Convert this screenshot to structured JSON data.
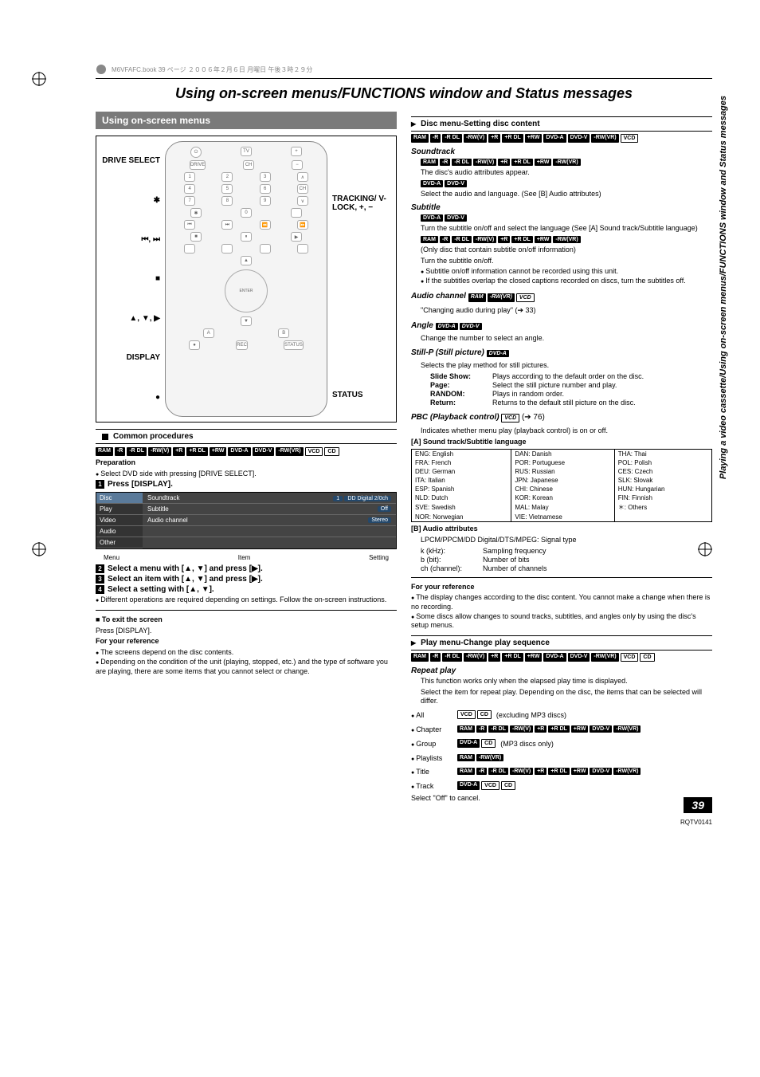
{
  "side_label": "Playing a video cassette/Using on-screen menus/FUNCTIONS window and Status messages",
  "header_meta": "M6VFAFC.book  39 ページ  ２００６年２月６日  月曜日  午後３時２９分",
  "main_title": "Using on-screen menus/FUNCTIONS window and Status messages",
  "left": {
    "section_title": "Using on-screen menus",
    "remote_left": [
      "DRIVE SELECT",
      "✱",
      "⏮, ⏭",
      "■",
      "▲, ▼, ▶",
      "DISPLAY",
      "●"
    ],
    "remote_right_1": "TRACKING/ V-LOCK, +, −",
    "remote_right_2": "STATUS",
    "common_title": "Common procedures",
    "tags_common": [
      "RAM",
      "-R",
      "-R DL",
      "-RW(V)",
      "+R",
      "+R DL",
      "+RW",
      "DVD-A",
      "DVD-V",
      "-RW(VR)",
      "VCD",
      "CD"
    ],
    "prep_h": "Preparation",
    "prep_b": "Select DVD side with pressing [DRIVE SELECT].",
    "step1": "Press [DISPLAY].",
    "osd": {
      "left": [
        "Disc",
        "Play",
        "Video",
        "Audio",
        "Other"
      ],
      "r1_label": "Soundtrack",
      "r1_val": "1",
      "r1_extra": "DD Digital  2/0ch",
      "r2_label": "Subtitle",
      "r2_val": "Off",
      "r3_label": "Audio channel",
      "r3_val": "Stereo",
      "cap_l": "Menu",
      "cap_m": "Item",
      "cap_r": "Setting"
    },
    "step2": "Select a menu with [▲, ▼] and press [▶].",
    "step3": "Select an item with [▲, ▼] and press [▶].",
    "step4": "Select a setting with [▲, ▼].",
    "step4_note": "Different operations are required depending on settings. Follow the on-screen instructions.",
    "exit_h": "■ To exit the screen",
    "exit_b": "Press [DISPLAY].",
    "ref_h": "For your reference",
    "ref_b1": "The screens depend on the disc contents.",
    "ref_b2": "Depending on the condition of the unit (playing, stopped, etc.) and the type of software you are playing, there are some items that you cannot select or change."
  },
  "right": {
    "disc_title": "Disc menu-Setting disc content",
    "disc_tags": [
      "RAM",
      "-R",
      "-R DL",
      "-RW(V)",
      "+R",
      "+R DL",
      "+RW",
      "DVD-A",
      "DVD-V",
      "-RW(VR)",
      "VCD"
    ],
    "soundtrack_h": "Soundtrack",
    "st_tags1": [
      "RAM",
      "-R",
      "-R DL",
      "-RW(V)",
      "+R",
      "+R DL",
      "+RW",
      "-RW(VR)"
    ],
    "st_txt1": "The disc's audio attributes appear.",
    "st_tags2": [
      "DVD-A",
      "DVD-V"
    ],
    "st_txt2": "Select the audio and language. (See [B] Audio attributes)",
    "subtitle_h": "Subtitle",
    "sub_tags1": [
      "DVD-A",
      "DVD-V"
    ],
    "sub_txt1": "Turn the subtitle on/off and select the language (See [A] Sound track/Subtitle language)",
    "sub_tags2": [
      "RAM",
      "-R",
      "-R DL",
      "-RW(V)",
      "+R",
      "+R DL",
      "+RW",
      "-RW(VR)"
    ],
    "sub_txt2": "(Only disc that contain subtitle on/off information)",
    "sub_txt3": "Turn the subtitle on/off.",
    "sub_b1": "Subtitle on/off information cannot be recorded using this unit.",
    "sub_b2": "If the subtitles overlap the closed captions recorded on discs, turn the subtitles off.",
    "audio_ch_h": "Audio channel",
    "audio_ch_tags": [
      "RAM",
      "-RW(VR)",
      "VCD"
    ],
    "audio_ch_txt": "\"Changing audio during play\" (➔ 33)",
    "angle_h": "Angle",
    "angle_tags": [
      "DVD-A",
      "DVD-V"
    ],
    "angle_txt": "Change the number to select an angle.",
    "stillp_h": "Still-P (Still picture)",
    "stillp_tags": [
      "DVD-A"
    ],
    "stillp_txt": "Selects the play method for still pictures.",
    "sp_r1k": "Slide Show:",
    "sp_r1v": "Plays according to the default order on the disc.",
    "sp_r2k": "Page:",
    "sp_r2v": "Select the still picture number and play.",
    "sp_r3k": "RANDOM:",
    "sp_r3v": "Plays in random order.",
    "sp_r4k": "Return:",
    "sp_r4v": "Returns to the default still picture on the disc.",
    "pbc_h": "PBC (Playback control)",
    "pbc_tags": [
      "VCD"
    ],
    "pbc_ref": "(➔ 76)",
    "pbc_txt": "Indicates whether menu play (playback control) is on or off.",
    "lang_h": "[A] Sound track/Subtitle language",
    "lang": [
      [
        "ENG:",
        "English",
        "DAN:",
        "Danish",
        "THA:",
        "Thai"
      ],
      [
        "FRA:",
        "French",
        "POR:",
        "Portuguese",
        "POL:",
        "Polish"
      ],
      [
        "DEU:",
        "German",
        "RUS:",
        "Russian",
        "CES:",
        "Czech"
      ],
      [
        "ITA:",
        "Italian",
        "JPN:",
        "Japanese",
        "SLK:",
        "Slovak"
      ],
      [
        "ESP:",
        "Spanish",
        "CHI:",
        "Chinese",
        "HUN:",
        "Hungarian"
      ],
      [
        "NLD:",
        "Dutch",
        "KOR:",
        "Korean",
        "FIN:",
        "Finnish"
      ],
      [
        "SVE:",
        "Swedish",
        "MAL:",
        "Malay",
        "＊:",
        "Others"
      ],
      [
        "NOR:",
        "Norwegian",
        "VIE:",
        "Vietnamese",
        "",
        ""
      ]
    ],
    "audio_attr_h": "[B] Audio attributes",
    "aa_r0": "LPCM/PPCM/DD Digital/DTS/MPEG: Signal type",
    "aa_r1k": "k (kHz):",
    "aa_r1v": "Sampling frequency",
    "aa_r2k": "b (bit):",
    "aa_r2v": "Number of bits",
    "aa_r3k": "ch (channel):",
    "aa_r3v": "Number of channels",
    "ref2_h": "For your reference",
    "ref2_b1": "The display changes according to the disc content. You cannot make a change when there is no recording.",
    "ref2_b2": "Some discs allow changes to sound tracks, subtitles, and angles only by using the disc's setup menus.",
    "play_title": "Play menu-Change play sequence",
    "play_tags": [
      "RAM",
      "-R",
      "-R DL",
      "-RW(V)",
      "+R",
      "+R DL",
      "+RW",
      "DVD-A",
      "DVD-V",
      "-RW(VR)",
      "VCD",
      "CD"
    ],
    "repeat_h": "Repeat play",
    "repeat_t1": "This function works only when the elapsed play time is displayed.",
    "repeat_t2": "Select the item for repeat play. Depending on the disc, the items that can be selected will differ.",
    "rp_all": "All",
    "rp_all_tags": [
      "VCD",
      "CD"
    ],
    "rp_all_note": "(excluding MP3 discs)",
    "rp_ch": "Chapter",
    "rp_ch_tags": [
      "RAM",
      "-R",
      "-R DL",
      "-RW(V)",
      "+R",
      "+R DL",
      "+RW",
      "DVD-V",
      "-RW(VR)"
    ],
    "rp_gr": "Group",
    "rp_gr_tags": [
      "DVD-A",
      "CD"
    ],
    "rp_gr_note": "(MP3 discs only)",
    "rp_pl": "Playlists",
    "rp_pl_tags": [
      "RAM",
      "-RW(VR)"
    ],
    "rp_ti": "Title",
    "rp_ti_tags": [
      "RAM",
      "-R",
      "-R DL",
      "-RW(V)",
      "+R",
      "+R DL",
      "+RW",
      "DVD-V",
      "-RW(VR)"
    ],
    "rp_tr": "Track",
    "rp_tr_tags": [
      "DVD-A",
      "VCD",
      "CD"
    ],
    "repeat_off": "Select \"Off\" to cancel."
  },
  "page_number": "39",
  "doc_code": "RQTV0141"
}
